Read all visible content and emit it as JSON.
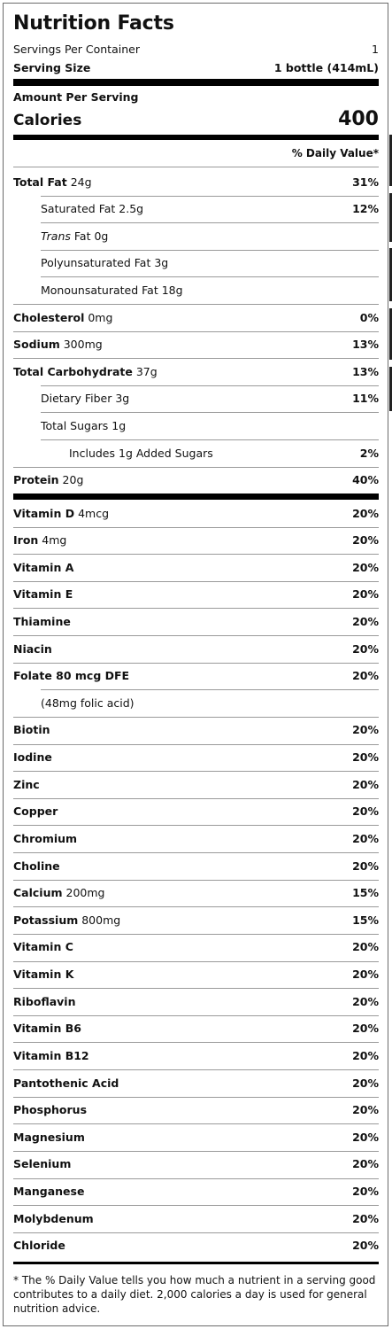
{
  "title": "Nutrition Facts",
  "servings_per_container": {
    "label": "Servings Per Container",
    "value": "1"
  },
  "serving_size": {
    "label": "Serving Size",
    "value": "1 bottle (414mL)"
  },
  "amount_per_serving": "Amount Per Serving",
  "calories": {
    "label": "Calories",
    "value": "400"
  },
  "dv_header": "% Daily Value*",
  "nutrients": [
    {
      "bold": "Total Fat",
      "plain": " 24g",
      "pct": "31%",
      "indent": 0
    },
    {
      "bold": "",
      "plain": "Saturated Fat 2.5g",
      "pct": "12%",
      "indent": 1
    },
    {
      "bold": "",
      "italic": "Trans",
      "plain": " Fat 0g",
      "pct": "",
      "indent": 1
    },
    {
      "bold": "",
      "plain": "Polyunsaturated Fat 3g",
      "pct": "",
      "indent": 1
    },
    {
      "bold": "",
      "plain": "Monounsaturated Fat 18g",
      "pct": "",
      "indent": 1
    },
    {
      "bold": "Cholesterol",
      "plain": " 0mg",
      "pct": "0%",
      "indent": 0
    },
    {
      "bold": "Sodium",
      "plain": " 300mg",
      "pct": "13%",
      "indent": 0
    },
    {
      "bold": "Total Carbohydrate",
      "plain": " 37g",
      "pct": "13%",
      "indent": 0
    },
    {
      "bold": "",
      "plain": "Dietary Fiber 3g",
      "pct": "11%",
      "indent": 1
    },
    {
      "bold": "",
      "plain": "Total Sugars 1g",
      "pct": "",
      "indent": 1
    },
    {
      "bold": "",
      "plain": "Includes 1g Added Sugars",
      "pct": "2%",
      "indent": 2
    },
    {
      "bold": "Protein",
      "plain": " 20g",
      "pct": "40%",
      "indent": 0
    }
  ],
  "vitamins": [
    {
      "bold": "Vitamin D",
      "plain": " 4mcg",
      "pct": "20%",
      "indent": 0
    },
    {
      "bold": "Iron",
      "plain": " 4mg",
      "pct": "20%",
      "indent": 0
    },
    {
      "bold": "Vitamin A",
      "plain": "",
      "pct": "20%",
      "indent": 0
    },
    {
      "bold": "Vitamin E",
      "plain": "",
      "pct": "20%",
      "indent": 0
    },
    {
      "bold": "Thiamine",
      "plain": "",
      "pct": "20%",
      "indent": 0
    },
    {
      "bold": "Niacin",
      "plain": "",
      "pct": "20%",
      "indent": 0
    },
    {
      "bold": "Folate 80 mcg DFE",
      "plain": "",
      "pct": "20%",
      "indent": 0
    },
    {
      "bold": "",
      "plain": "(48mg folic acid)",
      "pct": "",
      "indent": 1
    },
    {
      "bold": "Biotin",
      "plain": "",
      "pct": "20%",
      "indent": 0
    },
    {
      "bold": "Iodine",
      "plain": "",
      "pct": "20%",
      "indent": 0
    },
    {
      "bold": "Zinc",
      "plain": "",
      "pct": "20%",
      "indent": 0
    },
    {
      "bold": "Copper",
      "plain": "",
      "pct": "20%",
      "indent": 0
    },
    {
      "bold": "Chromium",
      "plain": "",
      "pct": "20%",
      "indent": 0
    },
    {
      "bold": "Choline",
      "plain": "",
      "pct": "20%",
      "indent": 0
    },
    {
      "bold": "Calcium",
      "plain": " 200mg",
      "pct": "15%",
      "indent": 0
    },
    {
      "bold": "Potassium",
      "plain": " 800mg",
      "pct": "15%",
      "indent": 0
    },
    {
      "bold": "Vitamin C",
      "plain": "",
      "pct": "20%",
      "indent": 0
    },
    {
      "bold": "Vitamin K",
      "plain": "",
      "pct": "20%",
      "indent": 0
    },
    {
      "bold": "Riboflavin",
      "plain": "",
      "pct": "20%",
      "indent": 0
    },
    {
      "bold": "Vitamin B6",
      "plain": "",
      "pct": "20%",
      "indent": 0
    },
    {
      "bold": "Vitamin B12",
      "plain": "",
      "pct": "20%",
      "indent": 0
    },
    {
      "bold": "Pantothenic Acid",
      "plain": "",
      "pct": "20%",
      "indent": 0
    },
    {
      "bold": "Phosphorus",
      "plain": "",
      "pct": "20%",
      "indent": 0
    },
    {
      "bold": "Magnesium",
      "plain": "",
      "pct": "20%",
      "indent": 0
    },
    {
      "bold": "Selenium",
      "plain": "",
      "pct": "20%",
      "indent": 0
    },
    {
      "bold": "Manganese",
      "plain": "",
      "pct": "20%",
      "indent": 0
    },
    {
      "bold": "Molybdenum",
      "plain": "",
      "pct": "20%",
      "indent": 0
    },
    {
      "bold": "Chloride",
      "plain": "",
      "pct": "20%",
      "indent": 0
    }
  ],
  "footnote": "* The % Daily Value tells you how much a nutrient in a serving good contributes to a daily diet. 2,000 calories a day is used for general nutrition advice."
}
